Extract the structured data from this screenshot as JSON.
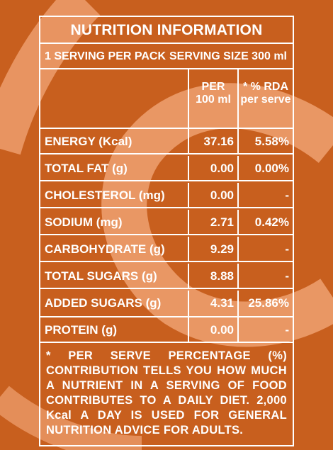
{
  "colors": {
    "background": "#c85f1e",
    "swirl": "#eb9a68",
    "text": "#ffffff"
  },
  "title": "NUTRITION INFORMATION",
  "serving": {
    "per_pack": "1 SERVING PER PACK",
    "size": "SERVING SIZE 300 ml"
  },
  "header": {
    "col2_line1": "PER",
    "col2_line2": "100 ml",
    "col3_line1": "* % RDA",
    "col3_line2": "per serve"
  },
  "rows": [
    {
      "label": "ENERGY (Kcal)",
      "per100": "37.16",
      "rda": "5.58%"
    },
    {
      "label": "TOTAL FAT (g)",
      "per100": "0.00",
      "rda": "0.00%"
    },
    {
      "label": "CHOLESTEROL (mg)",
      "per100": "0.00",
      "rda": "-"
    },
    {
      "label": "SODIUM (mg)",
      "per100": "2.71",
      "rda": "0.42%"
    },
    {
      "label": "CARBOHYDRATE (g)",
      "per100": "9.29",
      "rda": "-"
    },
    {
      "label": "TOTAL SUGARS (g)",
      "per100": "8.88",
      "rda": "-"
    },
    {
      "label": "ADDED SUGARS (g)",
      "per100": "4.31",
      "rda": "25.86%"
    },
    {
      "label": "PROTEIN (g)",
      "per100": "0.00",
      "rda": "-"
    }
  ],
  "footnote": "* PER SERVE PERCENTAGE (%) CONTRIBUTION TELLS YOU HOW MUCH A NUTRIENT IN A SERVING OF FOOD CONTRIBUTES TO A DAILY DIET. 2,000 Kcal A DAY IS USED FOR GENERAL NUTRITION ADVICE FOR ADULTS."
}
